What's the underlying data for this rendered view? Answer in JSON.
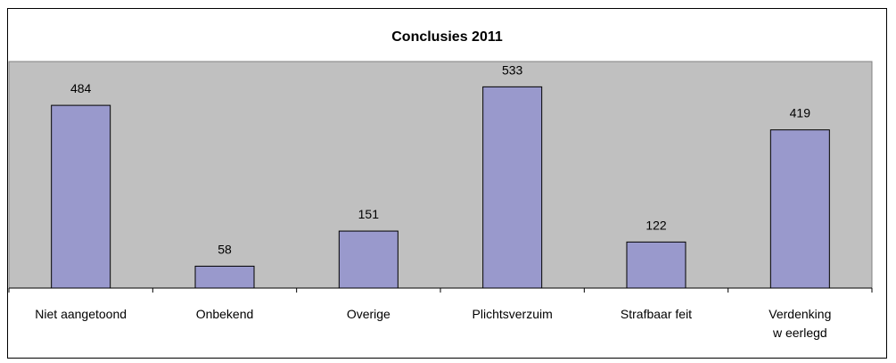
{
  "chart_data": {
    "type": "bar",
    "title": "Conclusies 2011",
    "categories": [
      [
        "Niet aangetoond"
      ],
      [
        "Onbekend"
      ],
      [
        "Overige"
      ],
      [
        "Plichtsverzuim"
      ],
      [
        "Strafbaar feit"
      ],
      [
        "Verdenking",
        "w eerlegd"
      ]
    ],
    "values": [
      484,
      58,
      151,
      533,
      122,
      419
    ],
    "ylim": [
      0,
      600
    ],
    "grid": false,
    "legend": "none",
    "colors": {
      "plot_background": "#c0c0c0",
      "bar_fill": "#9999cc",
      "bar_stroke": "#000000"
    }
  }
}
